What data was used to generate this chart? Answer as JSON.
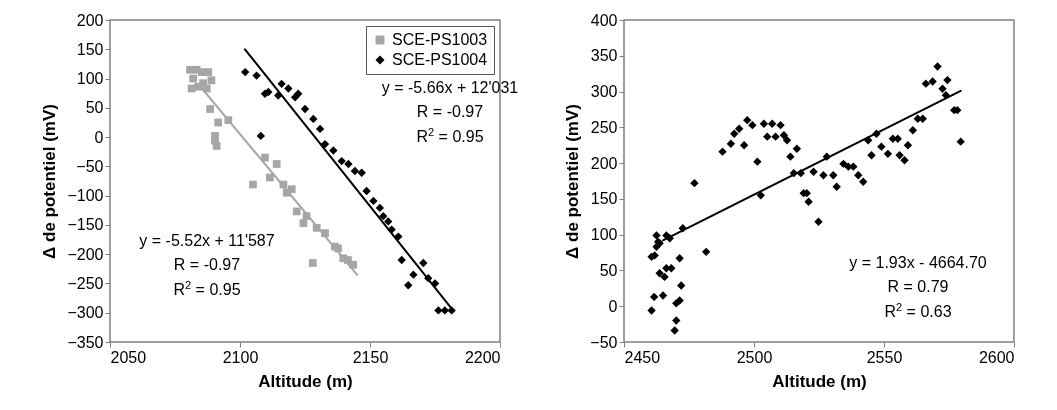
{
  "chart_data": [
    {
      "type": "scatter",
      "xlabel": "Altitude (m)",
      "ylabel": "Δ de potentiel (mV)",
      "xlim": [
        2050,
        2200
      ],
      "xticks": [
        2050,
        2100,
        2150,
        2200
      ],
      "ylim": [
        -350,
        200
      ],
      "yticks": [
        -350,
        -300,
        -250,
        -200,
        -150,
        -100,
        -50,
        0,
        50,
        100,
        150,
        200
      ],
      "legend": "top right",
      "annotations": [
        "y = -5.66x + 12'031",
        "R = -0.97",
        "R$^{2}$ = 0.95",
        "y = -5.52x + 11'587",
        "R = -0.97",
        "R$^{2}$ = 0.95"
      ],
      "series": [
        {
          "name": "SCE-PS1003",
          "type": "scatter",
          "marker": "square",
          "color": "#a6a6a6",
          "x": [
            2080.8,
            2083.3,
            2082,
            2085.3,
            2087.8,
            2089,
            2081.4,
            2083.9,
            2087.2,
            2085.8,
            2088.5,
            2091.6,
            2095.5,
            2090.4,
            2090.4,
            2091,
            2105,
            2109.6,
            2114.1,
            2111.5,
            2116.7,
            2119.9,
            2118,
            2121.8,
            2125.6,
            2124.4,
            2129.5,
            2132.7,
            2136.5,
            2137.7,
            2139.7,
            2128,
            2143.5,
            2141.5
          ],
          "values": [
            115,
            115,
            100,
            111,
            111,
            97,
            83,
            86,
            83,
            92,
            48,
            25,
            29,
            2,
            -6,
            -15,
            -81,
            -35,
            -46,
            -69,
            -81,
            -89,
            -95,
            -127,
            -135,
            -147,
            -155,
            -164,
            -187,
            -190,
            -207,
            -215,
            -218,
            -210
          ]
        },
        {
          "name": "SCE-PS1004",
          "type": "scatter",
          "marker": "diamond",
          "color": "#000000",
          "x": [
            2102,
            2106.4,
            2108,
            2109.6,
            2110.9,
            2114.7,
            2116,
            2118.6,
            2121.2,
            2122.4,
            2125,
            2128.2,
            2130.8,
            2132.7,
            2135.9,
            2139.1,
            2141.7,
            2144.2,
            2146.8,
            2148.7,
            2151.3,
            2153.8,
            2155.1,
            2157,
            2158.3,
            2160.9,
            2162.2,
            2164.7,
            2166.7,
            2170.5,
            2172.4,
            2175,
            2176.3,
            2178.8,
            2181.4
          ],
          "values": [
            111,
            105,
            2,
            74,
            77,
            71,
            91,
            83,
            68,
            74,
            48,
            31,
            14,
            -12,
            -23,
            -41,
            -46,
            -58,
            -61,
            -92,
            -109,
            -121,
            -135,
            -144,
            -158,
            -170,
            -210,
            -253,
            -235,
            -215,
            -241,
            -250,
            -296,
            -296,
            -296
          ]
        },
        {
          "type": "line",
          "color": "#a6a6a6",
          "x": [
            2083.9,
            2145
          ],
          "values": [
            91,
            -235
          ]
        },
        {
          "type": "line",
          "color": "#000000",
          "x": [
            2101.9,
            2181.4
          ],
          "values": [
            150,
            -293
          ]
        }
      ]
    },
    {
      "type": "scatter",
      "xlabel": "Altitude (m)",
      "ylabel": "Δ de potentiel (mV)",
      "xlim": [
        2450,
        2600
      ],
      "xticks": [
        2450,
        2500,
        2550,
        2600
      ],
      "ylim": [
        -50,
        400
      ],
      "yticks": [
        -50,
        0,
        50,
        100,
        150,
        200,
        250,
        300,
        350,
        400
      ],
      "annotations": [
        "y = 1.93x - 4664.70",
        "R = 0.79",
        "R$^{2}$ = 0.63"
      ],
      "series": [
        {
          "type": "scatter",
          "marker": "diamond",
          "color": "#000000",
          "x": [
            2460.6,
            2461.6,
            2465,
            2460.6,
            2461.8,
            2462.5,
            2463.1,
            2462.5,
            2463.7,
            2466.3,
            2467.6,
            2463.7,
            2465.6,
            2466.3,
            2468.2,
            2471.4,
            2472.6,
            2472,
            2471.4,
            2470.1,
            2470.1,
            2469.5,
            2477.1,
            2481.6,
            2487.9,
            2491.1,
            2492.4,
            2494.3,
            2497.4,
            2499.4,
            2496.2,
            2501.3,
            2502.6,
            2503.8,
            2507,
            2510.2,
            2505.1,
            2508.3,
            2511.5,
            2512.7,
            2514,
            2516.5,
            2515.3,
            2518,
            2519.1,
            2521,
            2524.8,
            2520.3,
            2522.9,
            2526.7,
            2528,
            2530.5,
            2531.8,
            2534.4,
            2538.2,
            2536.3,
            2540.1,
            2542,
            2543.9,
            2545.2,
            2547.1,
            2549,
            2551.5,
            2553.4,
            2555.3,
            2556,
            2557.9,
            2559.2,
            2561.1,
            2563,
            2564.9,
            2566.1,
            2568.7,
            2570.6,
            2572.5,
            2574.4,
            2573.8,
            2577,
            2578.2,
            2579.5
          ],
          "values": [
            -6,
            13,
            15,
            69,
            71,
            83,
            90,
            99,
            88,
            99,
            95,
            46,
            41,
            53,
            53,
            67,
            109,
            29,
            8,
            4,
            -20,
            -34,
            172,
            76,
            216,
            227,
            241,
            248,
            260,
            253,
            225,
            202,
            155,
            255,
            255,
            253,
            237,
            237,
            239,
            232,
            209,
            220,
            186,
            186,
            158,
            146,
            118,
            158,
            188,
            183,
            209,
            183,
            167,
            199,
            195,
            195,
            183,
            174,
            232,
            211,
            241,
            223,
            213,
            234,
            234,
            211,
            204,
            225,
            246,
            262,
            262,
            311,
            314,
            335,
            304,
            316,
            295,
            274,
            274,
            230
          ]
        },
        {
          "type": "line",
          "color": "#000000",
          "x": [
            2465,
            2579.5
          ],
          "values": [
            92,
            301
          ]
        }
      ]
    }
  ]
}
